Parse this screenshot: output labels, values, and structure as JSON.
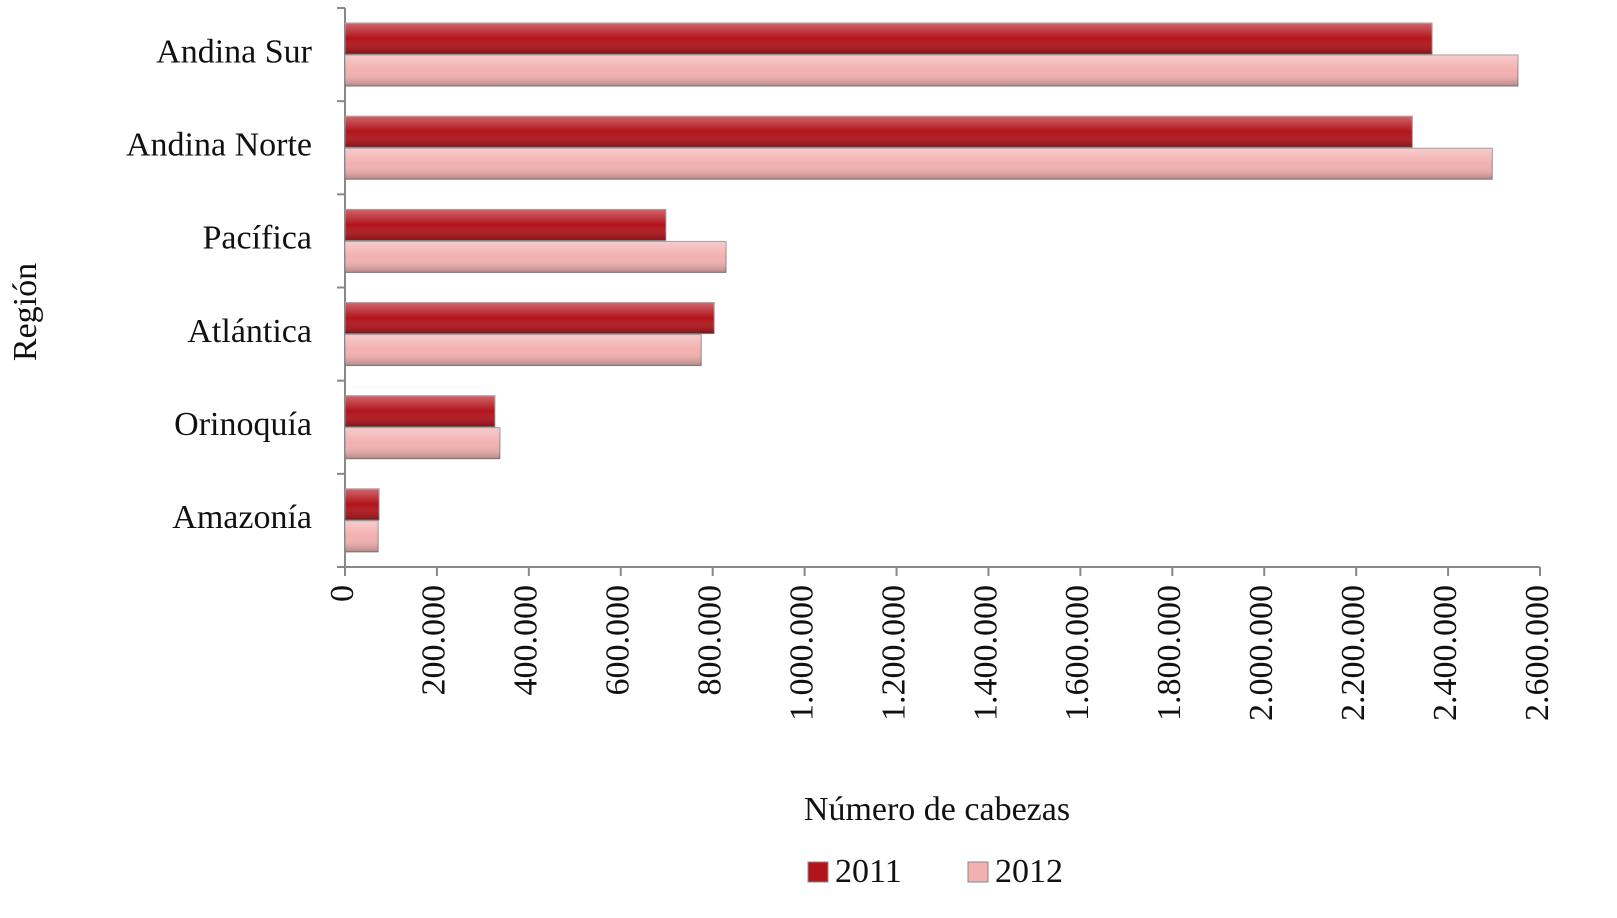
{
  "chart_data": {
    "type": "hbar",
    "categories": [
      "Andina Sur",
      "Andina Norte",
      "Pacífica",
      "Atlántica",
      "Orinoquía",
      "Amazonía"
    ],
    "series": [
      {
        "name": "2011",
        "color": "#b3141c",
        "values": [
          2365000,
          2322000,
          698000,
          803000,
          326000,
          74000
        ]
      },
      {
        "name": "2012",
        "color": "#f2b0b0",
        "values": [
          2552000,
          2496000,
          829000,
          775000,
          337000,
          72000
        ]
      }
    ],
    "xlim": [
      0,
      2600000
    ],
    "xticks": [
      0,
      {
        "value": 200000,
        "label": "200.000"
      },
      {
        "value": 400000,
        "label": "400.000"
      },
      {
        "value": 600000,
        "label": "600.000"
      },
      {
        "value": 800000,
        "label": "800.000"
      },
      {
        "value": 1000000,
        "label": "1.000.000"
      },
      {
        "value": 1200000,
        "label": "1.200.000"
      },
      {
        "value": 1400000,
        "label": "1.400.000"
      },
      {
        "value": 1600000,
        "label": "1.600.000"
      },
      {
        "value": 1800000,
        "label": "1.800.000"
      },
      {
        "value": 2000000,
        "label": "2.000.000"
      },
      {
        "value": 2200000,
        "label": "2.200.000"
      },
      {
        "value": 2400000,
        "label": "2.400.000"
      },
      {
        "value": 2600000,
        "label": "2.600.000"
      }
    ],
    "x_label": "Número de cabezas",
    "y_label": "Región",
    "legend": "bottom"
  }
}
